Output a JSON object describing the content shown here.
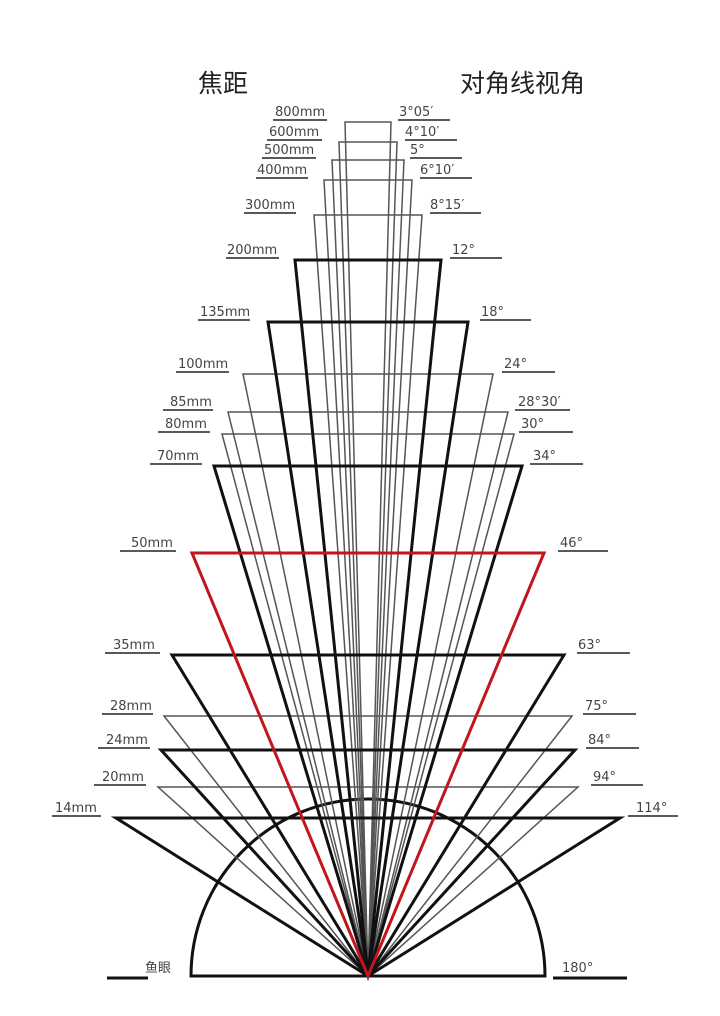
{
  "headings": {
    "focal_length": "焦距",
    "diagonal_angle": "对角线视角"
  },
  "colors": {
    "thick": "#111111",
    "thin": "#555555",
    "highlight": "#c0161c"
  },
  "rows": [
    {
      "focal": "800mm",
      "angle": "3°05′",
      "style": "thin"
    },
    {
      "focal": "600mm",
      "angle": "4°10′",
      "style": "thin"
    },
    {
      "focal": "500mm",
      "angle": "5°",
      "style": "thin"
    },
    {
      "focal": "400mm",
      "angle": "6°10′",
      "style": "thin"
    },
    {
      "focal": "300mm",
      "angle": "8°15′",
      "style": "thin"
    },
    {
      "focal": "200mm",
      "angle": "12°",
      "style": "thick"
    },
    {
      "focal": "135mm",
      "angle": "18°",
      "style": "thick"
    },
    {
      "focal": "100mm",
      "angle": "24°",
      "style": "thin"
    },
    {
      "focal": "85mm",
      "angle": "28°30′",
      "style": "thin"
    },
    {
      "focal": "80mm",
      "angle": "30°",
      "style": "thin"
    },
    {
      "focal": "70mm",
      "angle": "34°",
      "style": "thick"
    },
    {
      "focal": "50mm",
      "angle": "46°",
      "style": "highlight"
    },
    {
      "focal": "35mm",
      "angle": "63°",
      "style": "thick"
    },
    {
      "focal": "28mm",
      "angle": "75°",
      "style": "thin"
    },
    {
      "focal": "24mm",
      "angle": "84°",
      "style": "thick"
    },
    {
      "focal": "20mm",
      "angle": "94°",
      "style": "thin"
    },
    {
      "focal": "14mm",
      "angle": "114°",
      "style": "thick"
    }
  ],
  "fisheye": {
    "focal": "鱼眼",
    "angle": "180°"
  }
}
